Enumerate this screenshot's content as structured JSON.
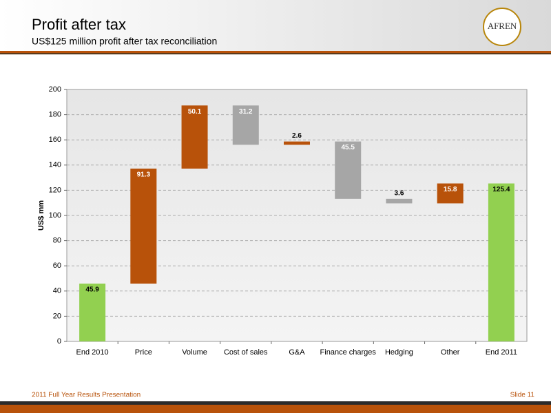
{
  "header": {
    "title": "Profit after tax",
    "subtitle": "US$125 million profit after tax reconciliation",
    "logo": "AFREN"
  },
  "chart_data": {
    "type": "waterfall",
    "y_label": "US$ mm",
    "categories": [
      "End 2010",
      "Price",
      "Volume",
      "Cost of sales",
      "G&A",
      "Finance charges",
      "Hedging",
      "Other",
      "End 2011"
    ],
    "values": [
      45.9,
      91.3,
      50.1,
      -31.2,
      2.6,
      -45.5,
      -3.6,
      15.8,
      125.4
    ],
    "value_labels": [
      "45.9",
      "91.3",
      "50.1",
      "31.2",
      "2.6",
      "45.5",
      "3.6",
      "15.8",
      "125.4"
    ],
    "colors": [
      "#92d050",
      "#b8520a",
      "#b8520a",
      "#a6a6a6",
      "#b8520a",
      "#a6a6a6",
      "#a6a6a6",
      "#b8520a",
      "#92d050"
    ],
    "ylim": [
      0,
      200
    ],
    "yticks": [
      0,
      20,
      40,
      60,
      80,
      100,
      120,
      140,
      160,
      180,
      200
    ],
    "grid": true
  },
  "footer": {
    "left": "2011 Full Year Results Presentation",
    "right": "Slide 11"
  }
}
